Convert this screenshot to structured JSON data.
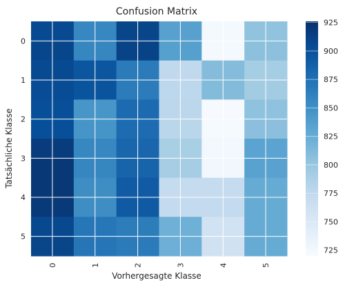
{
  "chart_data": {
    "type": "heatmap",
    "title": "Confusion Matrix",
    "xlabel": "Vorhergesagte Klasse",
    "ylabel": "Tatsächliche Klasse",
    "x_ticks": [
      "0",
      "1",
      "2",
      "3",
      "4",
      "5"
    ],
    "y_ticks": [
      "0",
      "1",
      "2",
      "3",
      "4",
      "5"
    ],
    "sub_rows_per_class": 2,
    "matrix": [
      [
        906,
        857,
        910,
        835,
        723,
        804
      ],
      [
        909,
        858,
        911,
        836,
        723,
        806
      ],
      [
        906,
        896,
        867,
        775,
        810,
        793
      ],
      [
        904,
        898,
        866,
        777,
        811,
        794
      ],
      [
        902,
        845,
        880,
        778,
        721,
        805
      ],
      [
        902,
        846,
        879,
        779,
        722,
        807
      ],
      [
        917,
        857,
        883,
        790,
        725,
        833
      ],
      [
        920,
        858,
        885,
        792,
        726,
        834
      ],
      [
        920,
        852,
        892,
        772,
        772,
        826
      ],
      [
        919,
        852,
        893,
        773,
        773,
        826
      ],
      [
        907,
        870,
        865,
        821,
        760,
        826
      ],
      [
        910,
        871,
        867,
        822,
        761,
        826
      ]
    ],
    "colorbar": {
      "min": 720,
      "max": 926,
      "ticks": [
        "725",
        "750",
        "775",
        "800",
        "825",
        "850",
        "875",
        "900",
        "925"
      ]
    },
    "colormap": "Blues",
    "grid": true
  }
}
